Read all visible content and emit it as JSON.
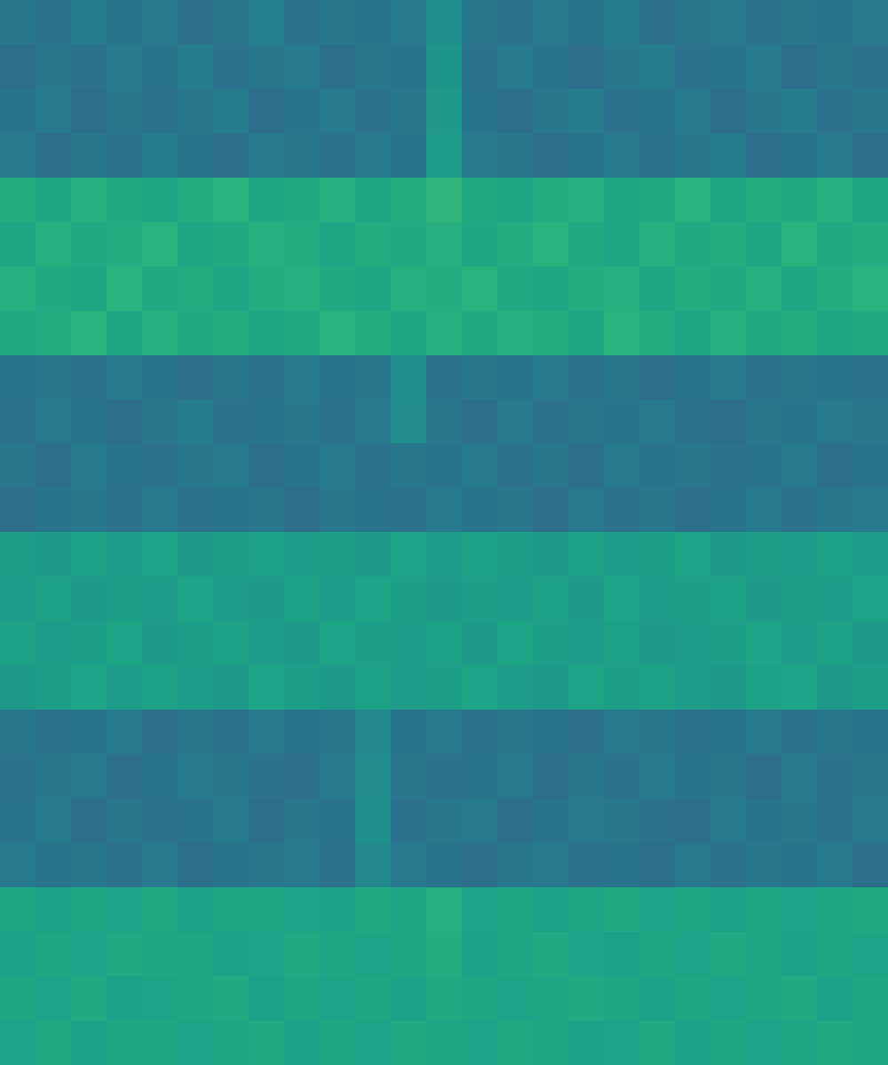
{
  "chart_data": {
    "type": "heatmap",
    "color": "viridis",
    "color_range": [
      0,
      1
    ],
    "tick_labels": false,
    "cells": [
      [
        0.4,
        0.38,
        0.42,
        0.39,
        0.41,
        0.37,
        0.4,
        0.43,
        0.38,
        0.4,
        0.39,
        0.41,
        0.5,
        0.4,
        0.38,
        0.41,
        0.39,
        0.42,
        0.37,
        0.4,
        0.41,
        0.38,
        0.4,
        0.39,
        0.41
      ],
      [
        0.37,
        0.4,
        0.38,
        0.41,
        0.39,
        0.42,
        0.38,
        0.4,
        0.41,
        0.37,
        0.4,
        0.39,
        0.53,
        0.38,
        0.41,
        0.39,
        0.37,
        0.4,
        0.42,
        0.38,
        0.39,
        0.41,
        0.37,
        0.4,
        0.38
      ],
      [
        0.39,
        0.41,
        0.37,
        0.4,
        0.38,
        0.4,
        0.42,
        0.37,
        0.39,
        0.41,
        0.38,
        0.4,
        0.54,
        0.39,
        0.37,
        0.4,
        0.42,
        0.38,
        0.39,
        0.41,
        0.37,
        0.4,
        0.42,
        0.38,
        0.4
      ],
      [
        0.41,
        0.37,
        0.4,
        0.38,
        0.42,
        0.39,
        0.37,
        0.41,
        0.4,
        0.38,
        0.41,
        0.39,
        0.55,
        0.41,
        0.4,
        0.37,
        0.39,
        0.41,
        0.38,
        0.4,
        0.42,
        0.37,
        0.39,
        0.41,
        0.37
      ],
      [
        0.62,
        0.6,
        0.63,
        0.61,
        0.59,
        0.62,
        0.64,
        0.6,
        0.61,
        0.63,
        0.6,
        0.62,
        0.66,
        0.61,
        0.59,
        0.62,
        0.63,
        0.6,
        0.61,
        0.64,
        0.6,
        0.62,
        0.61,
        0.63,
        0.6
      ],
      [
        0.6,
        0.63,
        0.61,
        0.62,
        0.64,
        0.6,
        0.61,
        0.63,
        0.62,
        0.59,
        0.62,
        0.61,
        0.63,
        0.6,
        0.62,
        0.64,
        0.61,
        0.59,
        0.63,
        0.61,
        0.62,
        0.6,
        0.64,
        0.61,
        0.62
      ],
      [
        0.63,
        0.61,
        0.6,
        0.64,
        0.61,
        0.62,
        0.59,
        0.62,
        0.63,
        0.61,
        0.6,
        0.63,
        0.62,
        0.64,
        0.61,
        0.6,
        0.62,
        0.63,
        0.6,
        0.62,
        0.61,
        0.63,
        0.6,
        0.62,
        0.64
      ],
      [
        0.61,
        0.62,
        0.64,
        0.6,
        0.63,
        0.61,
        0.62,
        0.6,
        0.61,
        0.64,
        0.62,
        0.6,
        0.63,
        0.61,
        0.63,
        0.62,
        0.6,
        0.64,
        0.62,
        0.59,
        0.63,
        0.61,
        0.62,
        0.6,
        0.61
      ],
      [
        0.39,
        0.4,
        0.38,
        0.41,
        0.39,
        0.37,
        0.4,
        0.38,
        0.41,
        0.39,
        0.4,
        0.5,
        0.38,
        0.4,
        0.39,
        0.41,
        0.38,
        0.4,
        0.37,
        0.39,
        0.41,
        0.38,
        0.4,
        0.39,
        0.38
      ],
      [
        0.38,
        0.41,
        0.39,
        0.37,
        0.4,
        0.42,
        0.38,
        0.39,
        0.4,
        0.38,
        0.41,
        0.49,
        0.4,
        0.37,
        0.41,
        0.38,
        0.4,
        0.39,
        0.41,
        0.38,
        0.37,
        0.4,
        0.39,
        0.41,
        0.4
      ],
      [
        0.4,
        0.37,
        0.41,
        0.39,
        0.38,
        0.4,
        0.41,
        0.37,
        0.39,
        0.41,
        0.38,
        0.4,
        0.39,
        0.41,
        0.38,
        0.4,
        0.37,
        0.41,
        0.39,
        0.4,
        0.38,
        0.39,
        0.41,
        0.37,
        0.39
      ],
      [
        0.37,
        0.39,
        0.4,
        0.38,
        0.41,
        0.38,
        0.39,
        0.4,
        0.37,
        0.4,
        0.39,
        0.38,
        0.41,
        0.39,
        0.4,
        0.37,
        0.41,
        0.38,
        0.4,
        0.37,
        0.39,
        0.41,
        0.38,
        0.4,
        0.41
      ],
      [
        0.56,
        0.54,
        0.57,
        0.55,
        0.58,
        0.54,
        0.56,
        0.57,
        0.55,
        0.56,
        0.54,
        0.58,
        0.55,
        0.57,
        0.56,
        0.54,
        0.57,
        0.55,
        0.56,
        0.58,
        0.54,
        0.56,
        0.55,
        0.57,
        0.55
      ],
      [
        0.55,
        0.57,
        0.54,
        0.56,
        0.55,
        0.58,
        0.55,
        0.54,
        0.57,
        0.55,
        0.58,
        0.56,
        0.54,
        0.56,
        0.55,
        0.57,
        0.54,
        0.58,
        0.55,
        0.56,
        0.57,
        0.54,
        0.56,
        0.55,
        0.58
      ],
      [
        0.57,
        0.55,
        0.56,
        0.58,
        0.54,
        0.56,
        0.57,
        0.55,
        0.54,
        0.58,
        0.56,
        0.55,
        0.57,
        0.54,
        0.58,
        0.56,
        0.55,
        0.57,
        0.54,
        0.55,
        0.56,
        0.58,
        0.55,
        0.57,
        0.54
      ],
      [
        0.54,
        0.56,
        0.58,
        0.55,
        0.57,
        0.55,
        0.54,
        0.58,
        0.56,
        0.54,
        0.57,
        0.55,
        0.56,
        0.58,
        0.55,
        0.54,
        0.58,
        0.56,
        0.57,
        0.55,
        0.54,
        0.57,
        0.58,
        0.54,
        0.56
      ],
      [
        0.4,
        0.38,
        0.39,
        0.41,
        0.37,
        0.4,
        0.38,
        0.41,
        0.39,
        0.4,
        0.48,
        0.39,
        0.41,
        0.38,
        0.4,
        0.39,
        0.37,
        0.41,
        0.4,
        0.38,
        0.39,
        0.41,
        0.38,
        0.4,
        0.39
      ],
      [
        0.38,
        0.4,
        0.41,
        0.37,
        0.39,
        0.41,
        0.4,
        0.38,
        0.37,
        0.41,
        0.49,
        0.4,
        0.38,
        0.39,
        0.41,
        0.37,
        0.4,
        0.38,
        0.41,
        0.39,
        0.4,
        0.37,
        0.41,
        0.38,
        0.4
      ],
      [
        0.39,
        0.41,
        0.37,
        0.4,
        0.38,
        0.39,
        0.41,
        0.37,
        0.4,
        0.39,
        0.5,
        0.38,
        0.4,
        0.41,
        0.37,
        0.39,
        0.41,
        0.4,
        0.38,
        0.37,
        0.41,
        0.39,
        0.4,
        0.38,
        0.41
      ],
      [
        0.41,
        0.39,
        0.4,
        0.38,
        0.41,
        0.37,
        0.39,
        0.4,
        0.41,
        0.38,
        0.48,
        0.41,
        0.39,
        0.37,
        0.4,
        0.41,
        0.38,
        0.39,
        0.37,
        0.41,
        0.38,
        0.4,
        0.39,
        0.41,
        0.37
      ],
      [
        0.59,
        0.57,
        0.6,
        0.58,
        0.61,
        0.57,
        0.59,
        0.6,
        0.58,
        0.57,
        0.61,
        0.59,
        0.63,
        0.58,
        0.6,
        0.57,
        0.59,
        0.61,
        0.58,
        0.6,
        0.57,
        0.59,
        0.58,
        0.6,
        0.61
      ],
      [
        0.57,
        0.6,
        0.58,
        0.61,
        0.59,
        0.6,
        0.57,
        0.58,
        0.61,
        0.59,
        0.58,
        0.6,
        0.62,
        0.57,
        0.59,
        0.61,
        0.58,
        0.57,
        0.6,
        0.58,
        0.61,
        0.59,
        0.57,
        0.6,
        0.58
      ],
      [
        0.6,
        0.58,
        0.61,
        0.57,
        0.58,
        0.59,
        0.61,
        0.57,
        0.6,
        0.58,
        0.59,
        0.57,
        0.61,
        0.6,
        0.58,
        0.59,
        0.61,
        0.6,
        0.57,
        0.59,
        0.58,
        0.6,
        0.61,
        0.57,
        0.59
      ],
      [
        0.58,
        0.61,
        0.57,
        0.59,
        0.6,
        0.58,
        0.6,
        0.61,
        0.57,
        0.6,
        0.58,
        0.61,
        0.59,
        0.58,
        0.61,
        0.6,
        0.57,
        0.58,
        0.61,
        0.57,
        0.6,
        0.58,
        0.59,
        0.61,
        0.6
      ]
    ]
  }
}
